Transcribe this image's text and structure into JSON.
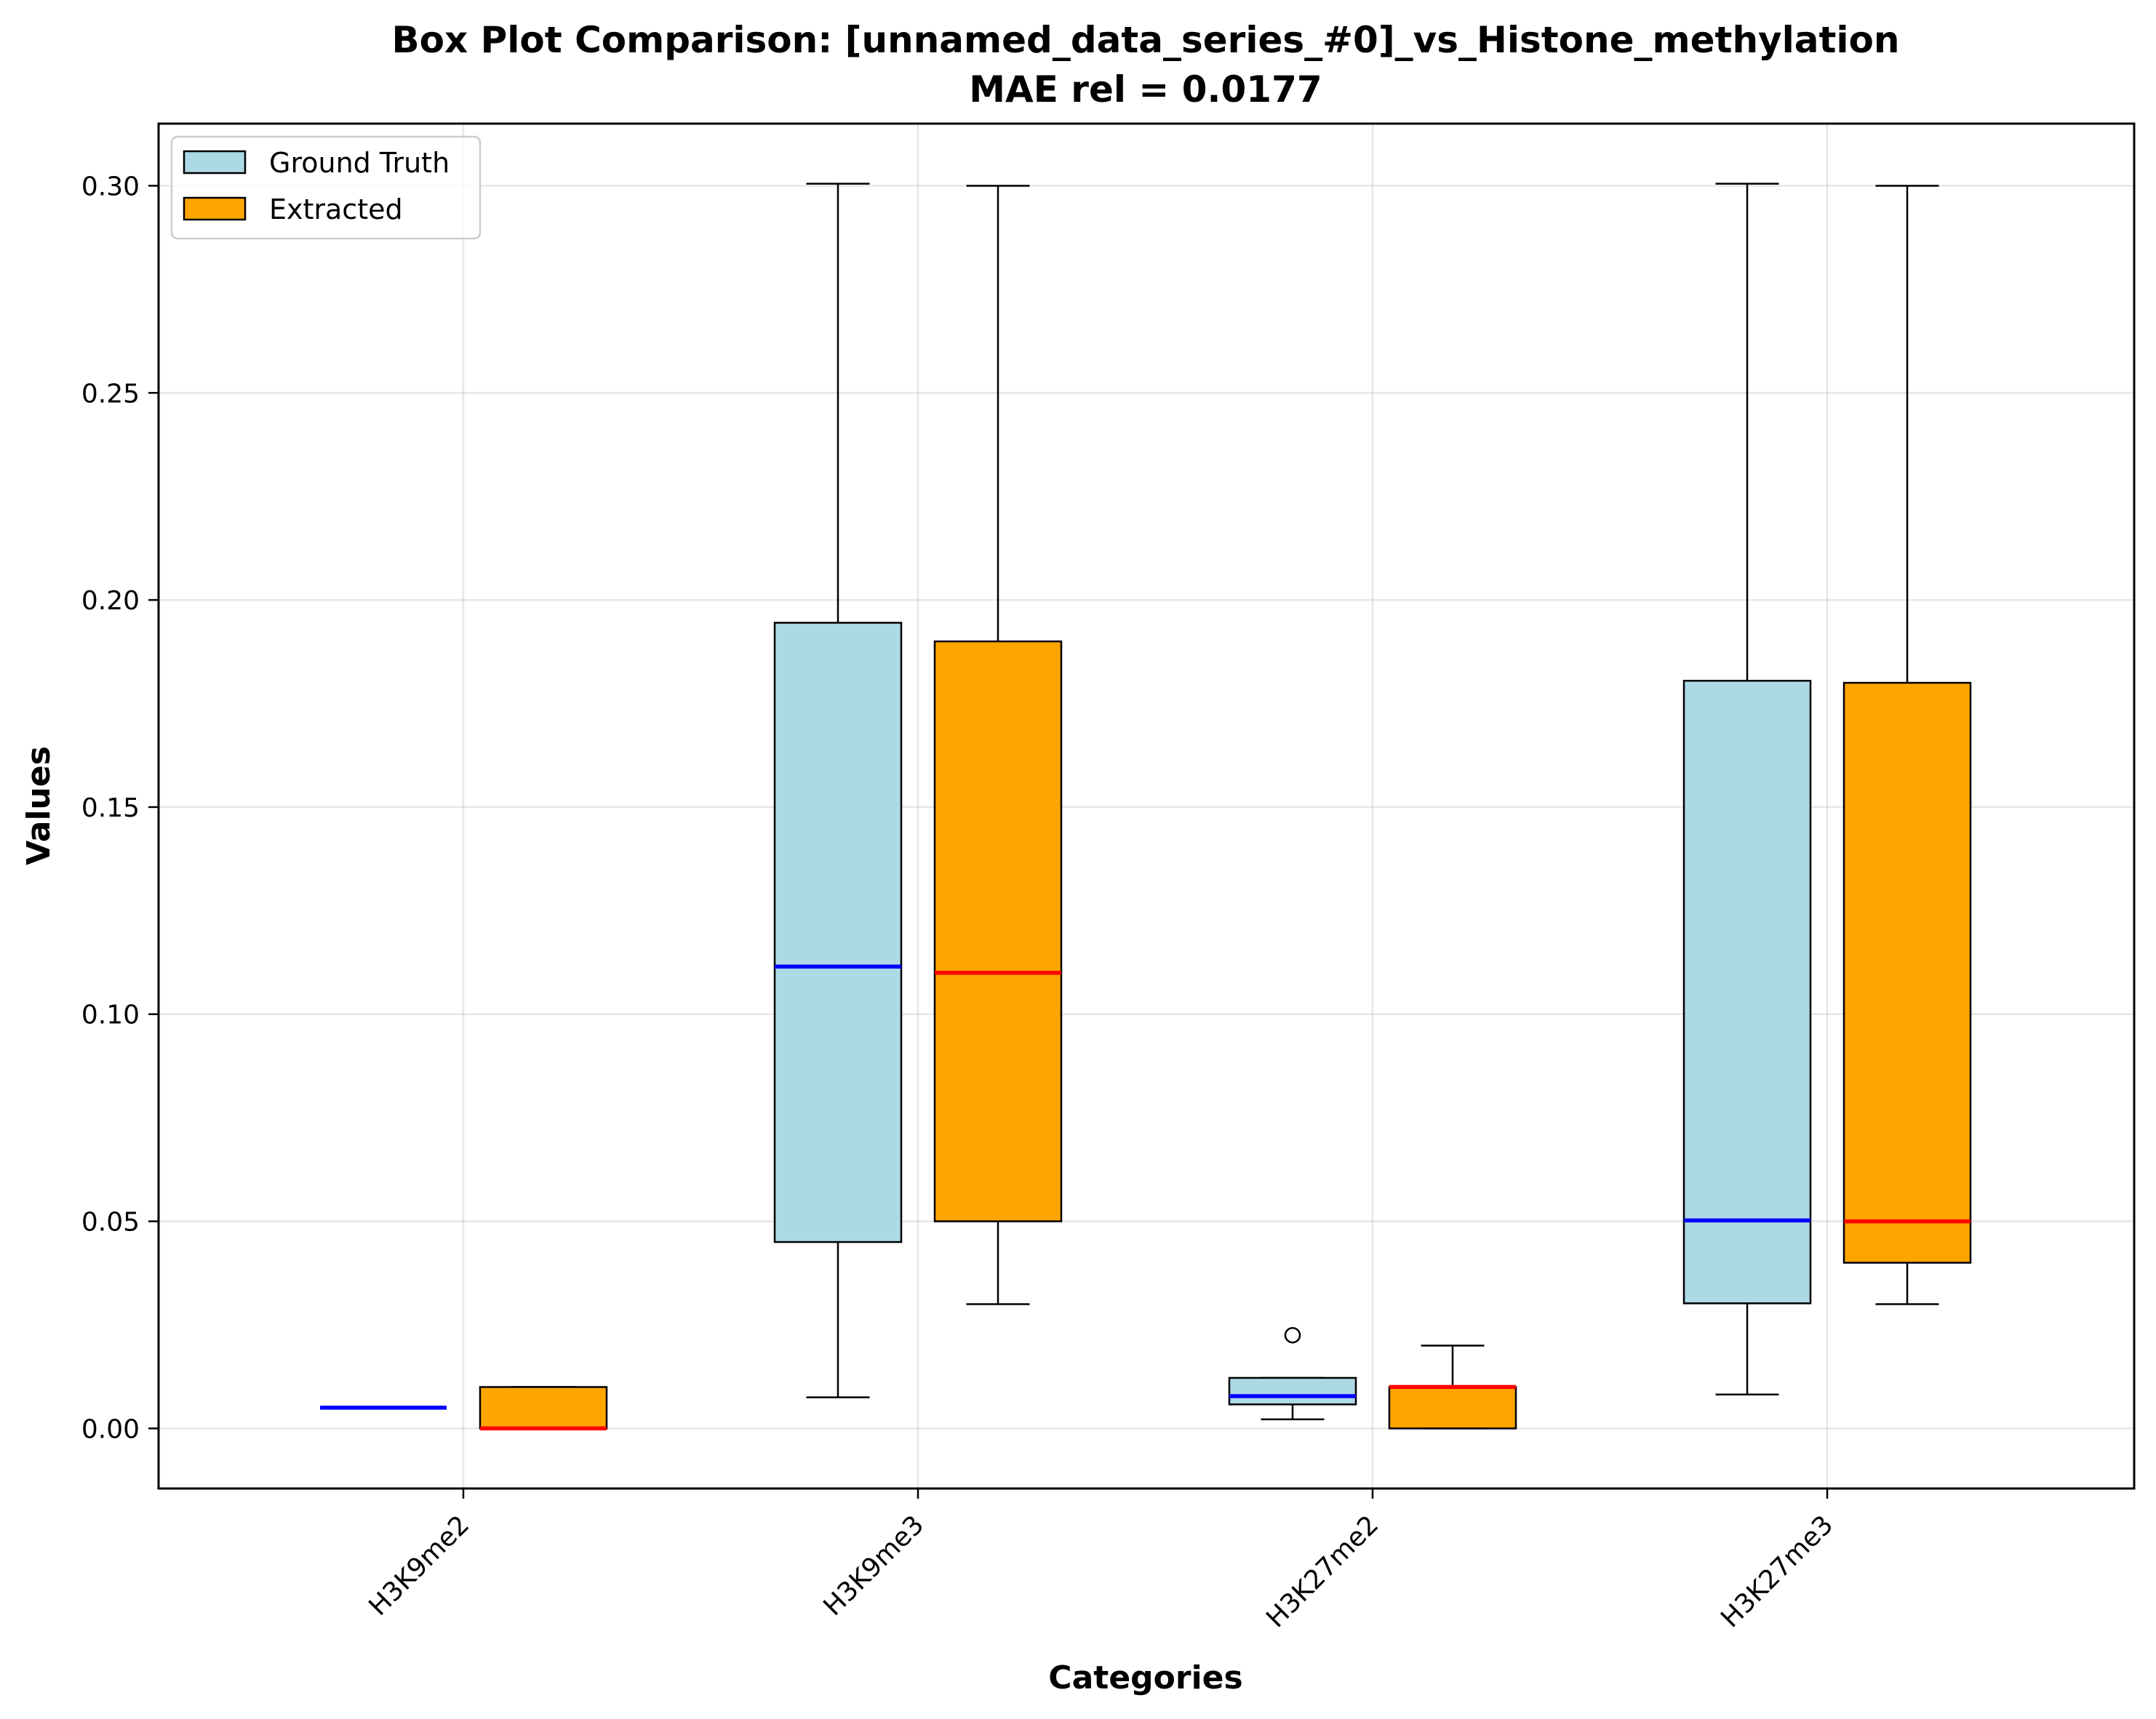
{
  "chart_data": {
    "type": "box",
    "title": "Box Plot Comparison: [unnamed_data_series_#0]_vs_Histone_methylation",
    "subtitle": "MAE rel = 0.0177",
    "xlabel": "Categories",
    "ylabel": "Values",
    "categories": [
      "H3K9me2",
      "H3K9me3",
      "H3K27me2",
      "H3K27me3"
    ],
    "ylim": [
      -0.0145,
      0.315
    ],
    "yticks": [
      0.0,
      0.05,
      0.1,
      0.15,
      0.2,
      0.25,
      0.3
    ],
    "ytick_labels": [
      "0.00",
      "0.05",
      "0.10",
      "0.15",
      "0.20",
      "0.25",
      "0.30"
    ],
    "grid": true,
    "legend_position": "top-left",
    "series": [
      {
        "name": "Ground Truth",
        "fill_color": "#add8e6",
        "median_color": "#0000ff",
        "boxes": [
          {
            "whisker_low": 0.005,
            "q1": 0.005,
            "median": 0.005,
            "q3": 0.005,
            "whisker_high": 0.005,
            "outliers": []
          },
          {
            "whisker_low": 0.0075,
            "q1": 0.045,
            "median": 0.1115,
            "q3": 0.1945,
            "whisker_high": 0.3005,
            "outliers": []
          },
          {
            "whisker_low": 0.0022,
            "q1": 0.0058,
            "median": 0.0078,
            "q3": 0.0122,
            "whisker_high": 0.0122,
            "outliers": [
              0.0225
            ]
          },
          {
            "whisker_low": 0.0082,
            "q1": 0.0302,
            "median": 0.0502,
            "q3": 0.1805,
            "whisker_high": 0.3005,
            "outliers": []
          }
        ]
      },
      {
        "name": "Extracted",
        "fill_color": "#ffa500",
        "median_color": "#ff0000",
        "boxes": [
          {
            "whisker_low": 0.0,
            "q1": 0.0,
            "median": 0.0,
            "q3": 0.01,
            "whisker_high": 0.01,
            "outliers": []
          },
          {
            "whisker_low": 0.03,
            "q1": 0.05,
            "median": 0.11,
            "q3": 0.19,
            "whisker_high": 0.3,
            "outliers": []
          },
          {
            "whisker_low": 0.0,
            "q1": 0.0,
            "median": 0.01,
            "q3": 0.01,
            "whisker_high": 0.02,
            "outliers": []
          },
          {
            "whisker_low": 0.03,
            "q1": 0.04,
            "median": 0.05,
            "q3": 0.18,
            "whisker_high": 0.3,
            "outliers": []
          }
        ]
      }
    ]
  }
}
